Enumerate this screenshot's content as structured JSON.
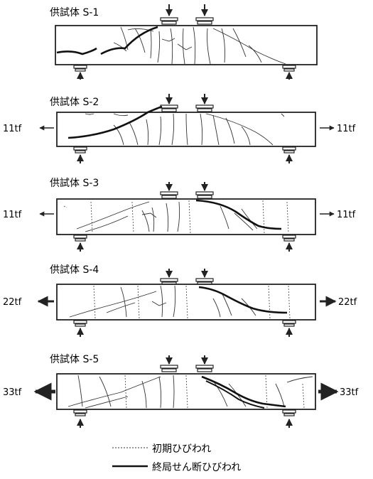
{
  "specimens": [
    {
      "label": "供試体 S-1",
      "force_label": ""
    },
    {
      "label": "供試体 S-2",
      "force_label": "11tf"
    },
    {
      "label": "供試体 S-3",
      "force_label": "11tf"
    },
    {
      "label": "供試体 S-4",
      "force_label": "22tf"
    },
    {
      "label": "供試体 S-5",
      "force_label": "33tf"
    }
  ],
  "legend": {
    "initial_crack": "初期ひびわれ",
    "ultimate_shear_crack": "終局せん断ひびわれ"
  },
  "colors": {
    "ink": "#222222",
    "background": "#ffffff"
  }
}
